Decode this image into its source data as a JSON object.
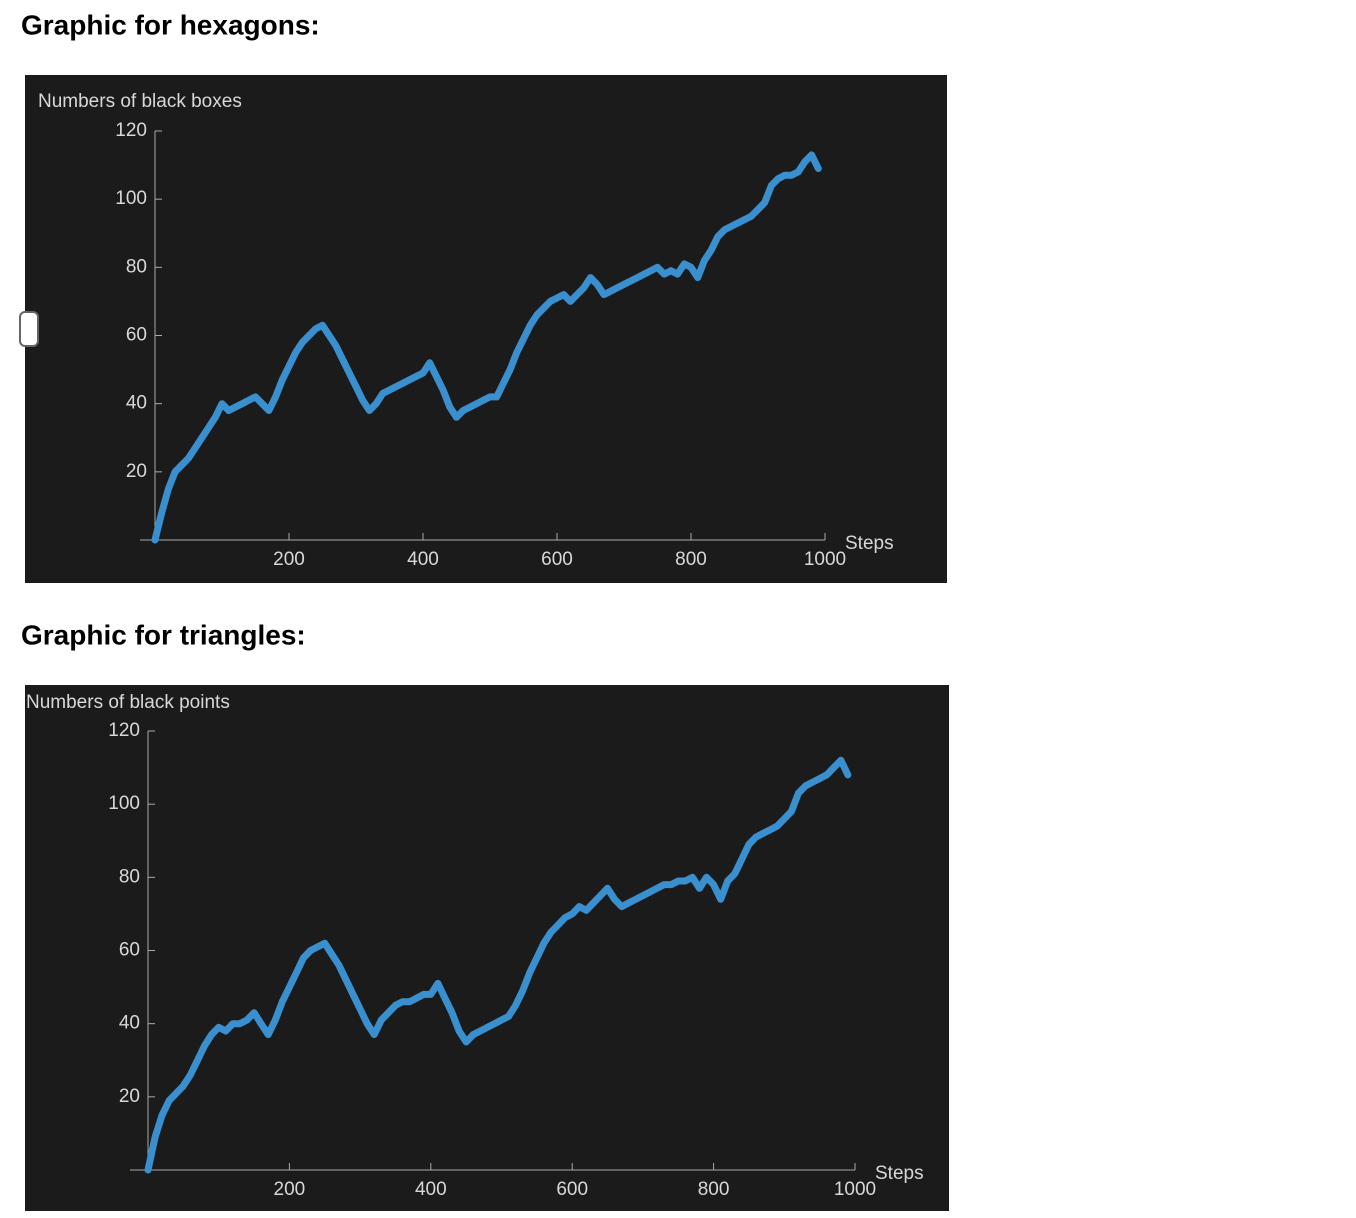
{
  "chart_data": [
    {
      "type": "line",
      "title": "Graphic for hexagons:",
      "ylabel": "Numbers of black boxes",
      "xlabel": "Steps",
      "color": "#3a8fcf",
      "x": [
        0,
        10,
        20,
        30,
        40,
        50,
        60,
        70,
        80,
        90,
        100,
        110,
        120,
        130,
        140,
        150,
        160,
        170,
        180,
        190,
        200,
        210,
        220,
        230,
        240,
        250,
        260,
        270,
        280,
        290,
        300,
        310,
        320,
        330,
        340,
        350,
        360,
        370,
        380,
        390,
        400,
        410,
        420,
        430,
        440,
        450,
        460,
        470,
        480,
        490,
        500,
        510,
        520,
        530,
        540,
        550,
        560,
        570,
        580,
        590,
        600,
        610,
        620,
        630,
        640,
        650,
        660,
        670,
        680,
        690,
        700,
        710,
        720,
        730,
        740,
        750,
        760,
        770,
        780,
        790,
        800,
        810,
        820,
        830,
        840,
        850,
        860,
        870,
        880,
        890,
        900,
        910,
        920,
        930,
        940,
        950,
        960,
        970,
        980,
        990
      ],
      "values": [
        0,
        8,
        15,
        20,
        22,
        24,
        27,
        30,
        33,
        36,
        40,
        38,
        39,
        40,
        41,
        42,
        40,
        38,
        42,
        47,
        51,
        55,
        58,
        60,
        62,
        63,
        60,
        57,
        53,
        49,
        45,
        41,
        38,
        40,
        43,
        44,
        45,
        46,
        47,
        48,
        49,
        52,
        48,
        44,
        39,
        36,
        38,
        39,
        40,
        41,
        42,
        42,
        46,
        50,
        55,
        59,
        63,
        66,
        68,
        70,
        71,
        72,
        70,
        72,
        74,
        77,
        75,
        72,
        73,
        74,
        75,
        76,
        77,
        78,
        79,
        80,
        78,
        79,
        78,
        81,
        80,
        77,
        82,
        85,
        89,
        91,
        92,
        93,
        94,
        95,
        97,
        99,
        104,
        106,
        107,
        107,
        108,
        111,
        113,
        109
      ],
      "xlim": [
        0,
        1000
      ],
      "ylim": [
        0,
        120
      ],
      "xticks": [
        200,
        400,
        600,
        800,
        1000
      ],
      "yticks": [
        20,
        40,
        60,
        80,
        100,
        120
      ],
      "grid": false
    },
    {
      "type": "line",
      "title": "Graphic for triangles:",
      "ylabel": "Numbers of black points",
      "xlabel": "Steps",
      "color": "#3a8fcf",
      "x": [
        0,
        10,
        20,
        30,
        40,
        50,
        60,
        70,
        80,
        90,
        100,
        110,
        120,
        130,
        140,
        150,
        160,
        170,
        180,
        190,
        200,
        210,
        220,
        230,
        240,
        250,
        260,
        270,
        280,
        290,
        300,
        310,
        320,
        330,
        340,
        350,
        360,
        370,
        380,
        390,
        400,
        410,
        420,
        430,
        440,
        450,
        460,
        470,
        480,
        490,
        500,
        510,
        520,
        530,
        540,
        550,
        560,
        570,
        580,
        590,
        600,
        610,
        620,
        630,
        640,
        650,
        660,
        670,
        680,
        690,
        700,
        710,
        720,
        730,
        740,
        750,
        760,
        770,
        780,
        790,
        800,
        810,
        820,
        830,
        840,
        850,
        860,
        870,
        880,
        890,
        900,
        910,
        920,
        930,
        940,
        950,
        960,
        970,
        980,
        990
      ],
      "values": [
        0,
        9,
        15,
        19,
        21,
        23,
        26,
        30,
        34,
        37,
        39,
        38,
        40,
        40,
        41,
        43,
        40,
        37,
        41,
        46,
        50,
        54,
        58,
        60,
        61,
        62,
        59,
        56,
        52,
        48,
        44,
        40,
        37,
        41,
        43,
        45,
        46,
        46,
        47,
        48,
        48,
        51,
        47,
        43,
        38,
        35,
        37,
        38,
        39,
        40,
        41,
        42,
        45,
        49,
        54,
        58,
        62,
        65,
        67,
        69,
        70,
        72,
        71,
        73,
        75,
        77,
        74,
        72,
        73,
        74,
        75,
        76,
        77,
        78,
        78,
        79,
        79,
        80,
        77,
        80,
        78,
        74,
        79,
        81,
        85,
        89,
        91,
        92,
        93,
        94,
        96,
        98,
        103,
        105,
        106,
        107,
        108,
        110,
        112,
        108
      ],
      "xlim": [
        0,
        1000
      ],
      "ylim": [
        0,
        120
      ],
      "xticks": [
        200,
        400,
        600,
        800,
        1000
      ],
      "yticks": [
        20,
        40,
        60,
        80,
        100,
        120
      ],
      "grid": false
    }
  ]
}
